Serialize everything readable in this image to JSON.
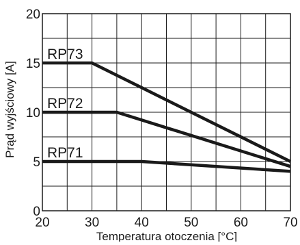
{
  "chart_data": {
    "type": "line",
    "title": "",
    "xlabel": "Temperatura otoczenia [°C]",
    "ylabel": "Prąd wyjściowy [A]",
    "xlim": [
      20,
      70
    ],
    "ylim": [
      0,
      20
    ],
    "x_ticks": [
      20,
      30,
      40,
      50,
      60,
      70
    ],
    "y_ticks": [
      0,
      5,
      10,
      15,
      20
    ],
    "x_tick_labels": [
      "20",
      "30",
      "40",
      "50",
      "60",
      "70"
    ],
    "y_tick_labels": [
      "0",
      "5",
      "10",
      "15",
      "20"
    ],
    "grid": true,
    "legend": "inline labels above lines",
    "line_color": "#1a1a1a",
    "grid_color": "#1a1a1a",
    "series": [
      {
        "name": "RP73",
        "x": [
          20,
          30,
          70
        ],
        "y": [
          15,
          15,
          5
        ]
      },
      {
        "name": "RP72",
        "x": [
          20,
          35,
          70
        ],
        "y": [
          10,
          10,
          4.5
        ]
      },
      {
        "name": "RP71",
        "x": [
          20,
          40,
          70
        ],
        "y": [
          5,
          5,
          4
        ]
      }
    ]
  }
}
